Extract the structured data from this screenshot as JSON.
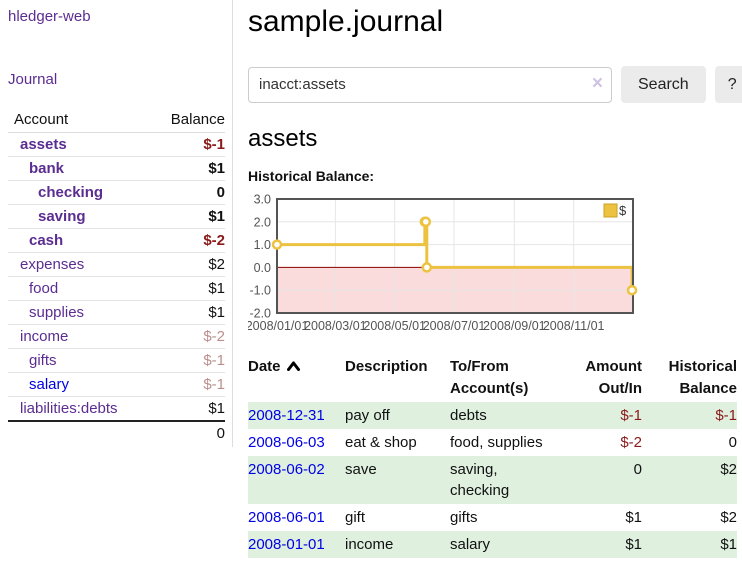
{
  "app": {
    "brand": "hledger-web"
  },
  "sidebar": {
    "nav": {
      "journal_label": "Journal"
    },
    "table": {
      "account_header": "Account",
      "balance_header": "Balance",
      "rows": [
        {
          "label": "assets",
          "depth": 0,
          "bold": true,
          "value": "$-1",
          "vclass": "neg"
        },
        {
          "label": "bank",
          "depth": 1,
          "bold": true,
          "value": "$1",
          "vclass": "plain"
        },
        {
          "label": "checking",
          "depth": 2,
          "bold": true,
          "value": "0",
          "vclass": "plain"
        },
        {
          "label": "saving",
          "depth": 2,
          "bold": true,
          "value": "$1",
          "vclass": "plain"
        },
        {
          "label": "cash",
          "depth": 1,
          "bold": true,
          "value": "$-2",
          "vclass": "neg"
        },
        {
          "label": "expenses",
          "depth": 0,
          "bold": false,
          "value": "$2",
          "vclass": "plain"
        },
        {
          "label": "food",
          "depth": 1,
          "bold": false,
          "value": "$1",
          "vclass": "plain"
        },
        {
          "label": "supplies",
          "depth": 1,
          "bold": false,
          "value": "$1",
          "vclass": "plain"
        },
        {
          "label": "income",
          "depth": 0,
          "bold": false,
          "value": "$-2",
          "vclass": "dim"
        },
        {
          "label": "gifts",
          "depth": 1,
          "bold": false,
          "value": "$-1",
          "vclass": "dim"
        },
        {
          "label": "salary",
          "depth": 1,
          "bold": false,
          "value": "$-1",
          "vclass": "dim",
          "blue": true
        },
        {
          "label": "liabilities:debts",
          "depth": 0,
          "bold": false,
          "value": "$1",
          "vclass": "plain"
        }
      ],
      "total": "0"
    }
  },
  "header": {
    "title": "sample.journal"
  },
  "search": {
    "value": "inacct:assets",
    "clear_glyph": "×",
    "button_label": "Search",
    "help_label": "?"
  },
  "account_page": {
    "title": "assets",
    "chart_label": "Historical Balance:"
  },
  "chart_data": {
    "type": "line",
    "step": true,
    "title": "Historical Balance",
    "series": [
      {
        "name": "$",
        "color": "#edc240",
        "x_days": [
          0,
          152,
          153,
          154,
          365
        ],
        "dates": [
          "2008-01-01",
          "2008-06-01",
          "2008-06-02",
          "2008-06-03",
          "2008-12-31"
        ],
        "values": [
          1,
          2,
          2,
          0,
          -1
        ]
      }
    ],
    "ylim": [
      -2,
      3
    ],
    "ytick_values": [
      3,
      2,
      1,
      0,
      -1,
      -2
    ],
    "ytick_labels": [
      "3.0",
      "2.0",
      "1.0",
      "0.0",
      "-1.0",
      "-2.0"
    ],
    "xlim_days": [
      0,
      366
    ],
    "xticks": [
      {
        "day": 0,
        "label": "2008/01/01"
      },
      {
        "day": 60,
        "label": "2008/03/01"
      },
      {
        "day": 121,
        "label": "2008/05/01"
      },
      {
        "day": 182,
        "label": "2008/07/01"
      },
      {
        "day": 244,
        "label": "2008/09/01"
      },
      {
        "day": 305,
        "label": "2008/11/01"
      }
    ],
    "legend": {
      "label": "$",
      "position": "top-right"
    },
    "grid": true,
    "colors": {
      "negative_fill": "#fbdcdc",
      "zero_line": "#8b0000",
      "grid": "#e6e6e6",
      "border": "#545454",
      "axis_text": "#545454",
      "marker_fill": "#ffffff",
      "legend_swatch_border": "#c9a227"
    }
  },
  "journal": {
    "headers": {
      "date": "Date",
      "description": "Description",
      "accounts": "To/From\nAccount(s)",
      "amount": "Amount\nOut/In",
      "balance": "Historical\nBalance"
    },
    "rows": [
      {
        "date": "2008-12-31",
        "description": "pay off",
        "accounts": "debts",
        "amount": "$-1",
        "balance": "$-1"
      },
      {
        "date": "2008-06-03",
        "description": "eat & shop",
        "accounts": "food, supplies",
        "amount": "$-2",
        "balance": "0"
      },
      {
        "date": "2008-06-02",
        "description": "save",
        "accounts": "saving, checking",
        "amount": "0",
        "balance": "$2"
      },
      {
        "date": "2008-06-01",
        "description": "gift",
        "accounts": "gifts",
        "amount": "$1",
        "balance": "$2"
      },
      {
        "date": "2008-01-01",
        "description": "income",
        "accounts": "salary",
        "amount": "$1",
        "balance": "$1"
      }
    ]
  },
  "colors": {
    "link_purple": "#5b2d91",
    "link_blue": "#0000e6",
    "negative_red": "#8b1a1a",
    "dim_red": "#bc8f8f",
    "row_stripe_green": "#dff0df",
    "series_gold": "#edc240"
  }
}
